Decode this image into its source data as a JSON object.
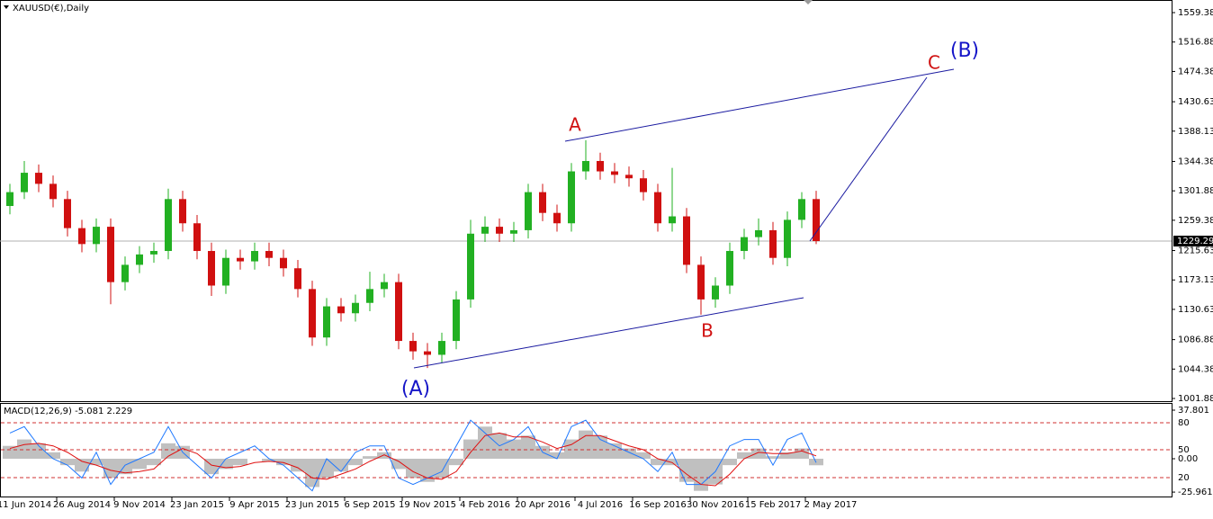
{
  "chart_data": {
    "type": "candlestick",
    "title": "XAUUSD(€),Daily",
    "categories": [
      null,
      "11 Jun 2014",
      null,
      null,
      null,
      "26 Aug 2014",
      null,
      null,
      null,
      "9 Nov 2014",
      null,
      null,
      null,
      "23 Jan 2015",
      null,
      null,
      null,
      "9 Apr 2015",
      null,
      null,
      null,
      "23 Jun 2015",
      null,
      null,
      null,
      "6 Sep 2015",
      null,
      null,
      null,
      "19 Nov 2015",
      null,
      null,
      null,
      "4 Feb 2016",
      null,
      null,
      null,
      "20 Apr 2016",
      null,
      null,
      null,
      "4 Jul 2016",
      null,
      null,
      null,
      "16 Sep 2016",
      null,
      null,
      null,
      "30 Nov 2016",
      null,
      null,
      null,
      "15 Feb 2017",
      null,
      null,
      null,
      "2 May 2017"
    ],
    "open": [
      1280,
      1300,
      1328,
      1312,
      1290,
      1248,
      1225,
      1250,
      1170,
      1195,
      1210,
      1215,
      1290,
      1255,
      1215,
      1165,
      1205,
      1200,
      1215,
      1205,
      1190,
      1160,
      1090,
      1135,
      1125,
      1140,
      1160,
      1170,
      1085,
      1070,
      1065,
      1085,
      1145,
      1240,
      1250,
      1240,
      1245,
      1300,
      1270,
      1255,
      1330,
      1345,
      1330,
      1325,
      1320,
      1300,
      1255,
      1265,
      1195,
      1145,
      1165,
      1215,
      1235,
      1245,
      1205,
      1260,
      1290,
      null
    ],
    "high": [
      1312,
      1345,
      1340,
      1324,
      1302,
      1260,
      1262,
      1262,
      1207,
      1222,
      1227,
      1305,
      1302,
      1267,
      1227,
      1217,
      1217,
      1227,
      1227,
      1217,
      1202,
      1172,
      1147,
      1147,
      1152,
      1185,
      1182,
      1182,
      1097,
      1082,
      1097,
      1157,
      1260,
      1265,
      1262,
      1257,
      1312,
      1312,
      1282,
      1342,
      1375,
      1357,
      1342,
      1337,
      1332,
      1312,
      1335,
      1277,
      1207,
      1177,
      1227,
      1247,
      1262,
      1257,
      1272,
      1300,
      1302,
      null
    ],
    "low": [
      1268,
      1290,
      1300,
      1278,
      1236,
      1213,
      1213,
      1138,
      1158,
      1183,
      1198,
      1203,
      1243,
      1203,
      1150,
      1153,
      1188,
      1188,
      1193,
      1178,
      1148,
      1078,
      1078,
      1113,
      1113,
      1128,
      1148,
      1073,
      1058,
      1046,
      1053,
      1073,
      1133,
      1228,
      1228,
      1228,
      1233,
      1258,
      1243,
      1243,
      1318,
      1318,
      1313,
      1308,
      1288,
      1243,
      1243,
      1183,
      1123,
      1133,
      1153,
      1203,
      1223,
      1195,
      1193,
      1248,
      1225,
      null
    ],
    "close": [
      1300,
      1328,
      1312,
      1290,
      1248,
      1225,
      1250,
      1170,
      1195,
      1210,
      1215,
      1290,
      1255,
      1215,
      1165,
      1205,
      1200,
      1215,
      1205,
      1190,
      1160,
      1090,
      1135,
      1125,
      1140,
      1160,
      1170,
      1085,
      1070,
      1065,
      1085,
      1145,
      1240,
      1250,
      1240,
      1245,
      1300,
      1270,
      1255,
      1330,
      1345,
      1330,
      1325,
      1320,
      1300,
      1255,
      1265,
      1195,
      1145,
      1165,
      1215,
      1235,
      1245,
      1205,
      1260,
      1290,
      1229.29,
      null
    ],
    "up_color": "#22b022",
    "down_color": "#d01010",
    "ylim": [
      999.3,
      1577.6
    ],
    "yticks": [
      1001.88,
      1044.38,
      1086.88,
      1130.63,
      1173.13,
      1215.63,
      1259.38,
      1301.88,
      1344.38,
      1388.13,
      1430.63,
      1474.38,
      1516.88,
      1559.38
    ],
    "last_price": 1229.29,
    "annotations": [
      "(A)",
      "A",
      "B",
      "C",
      "(B)"
    ],
    "macd": {
      "title": "MACD(12,26,9) -5.081 2.229",
      "ylim": [
        -30.1,
        42.7
      ],
      "yticks": [
        -25.961,
        {
          "value": 0,
          "label": "0.00"
        },
        37.801
      ],
      "levels": [
        {
          "value": 28,
          "label": "80"
        },
        {
          "value": 7,
          "label": "50"
        },
        {
          "value": -14.7,
          "label": "20"
        }
      ],
      "histogram": [
        10,
        15,
        12,
        5,
        -5,
        -10,
        -5,
        -15,
        -12,
        -8,
        -5,
        12,
        10,
        0,
        -12,
        -8,
        -5,
        0,
        -2,
        -5,
        -10,
        -22,
        -15,
        -10,
        -5,
        2,
        5,
        -8,
        -15,
        -18,
        -15,
        -5,
        15,
        25,
        20,
        15,
        18,
        10,
        5,
        15,
        22,
        18,
        12,
        8,
        5,
        -5,
        -5,
        -18,
        -25,
        -20,
        -5,
        5,
        8,
        2,
        5,
        8,
        -5.081,
        null
      ],
      "signal": [
        8,
        11,
        12,
        10,
        5,
        -2,
        -5,
        -9,
        -11,
        -10,
        -8,
        2,
        8,
        4,
        -5,
        -7,
        -6,
        -3,
        -2,
        -3,
        -7,
        -15,
        -16,
        -12,
        -8,
        -2,
        3,
        -2,
        -10,
        -15,
        -16,
        -10,
        5,
        18,
        20,
        17,
        17,
        13,
        8,
        11,
        18,
        18,
        14,
        10,
        7,
        0,
        -3,
        -12,
        -20,
        -21,
        -12,
        0,
        5,
        4,
        4,
        6,
        2.229,
        null
      ],
      "oscillator": [
        20,
        25,
        10,
        0,
        -5,
        -15,
        5,
        -20,
        -5,
        0,
        5,
        25,
        5,
        -5,
        -15,
        0,
        5,
        10,
        0,
        -5,
        -15,
        -25,
        0,
        -10,
        5,
        10,
        10,
        -15,
        -20,
        -15,
        -10,
        10,
        30,
        20,
        10,
        15,
        25,
        5,
        0,
        25,
        30,
        15,
        10,
        5,
        0,
        -10,
        5,
        -20,
        -20,
        -10,
        10,
        15,
        15,
        -5,
        15,
        20,
        -3,
        null
      ],
      "histogram_color": "#c0c0c0",
      "signal_color": "#e01010",
      "oscillator_color": "#1e78ff",
      "level_color": "#d03030"
    }
  }
}
